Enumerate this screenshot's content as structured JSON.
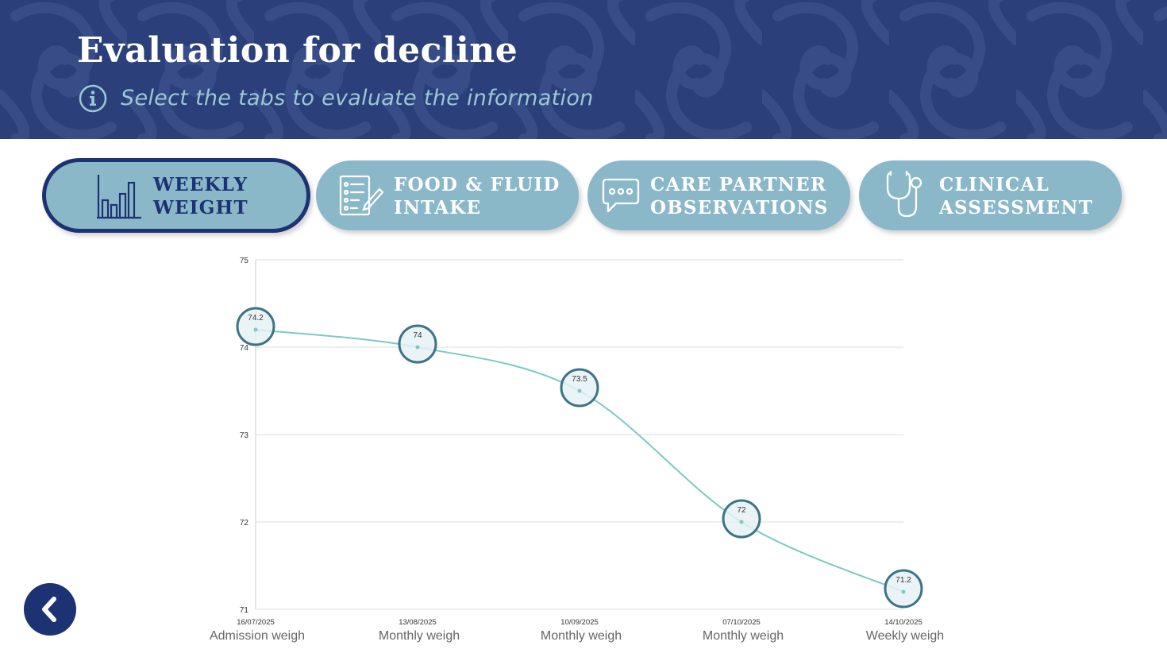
{
  "header": {
    "title": "Evaluation for decline",
    "instruction": "Select the tabs to evaluate the information"
  },
  "tabs": [
    {
      "id": "weekly-weight",
      "line1": "WEEKLY",
      "line2": "WEIGHT",
      "icon": "bar-chart-icon",
      "active": true
    },
    {
      "id": "food-fluid-intake",
      "line1": "FOOD & FLUID",
      "line2": "INTAKE",
      "icon": "checklist-icon",
      "active": false
    },
    {
      "id": "care-partner-observations",
      "line1": "CARE PARTNER",
      "line2": "OBSERVATIONS",
      "icon": "speech-bubble-icon",
      "active": false
    },
    {
      "id": "clinical-assessment",
      "line1": "CLINICAL",
      "line2": "ASSESSMENT",
      "icon": "stethoscope-icon",
      "active": false
    }
  ],
  "colors": {
    "banner": "#2b3f7a",
    "tab_fill": "#8ab8c9",
    "active_border": "#1c3273",
    "line": "#7ccac4",
    "marker_stroke": "#3e7487",
    "marker_fill": "#e6f1f4"
  },
  "chart_data": {
    "type": "line",
    "title": "",
    "xlabel": "",
    "ylabel": "",
    "ylim": [
      71,
      75
    ],
    "yticks": [
      "75",
      "74",
      "73",
      "72",
      "71"
    ],
    "grid": true,
    "x_dates": [
      "16/07/2025",
      "13/08/2025",
      "10/09/2025",
      "07/10/2025",
      "14/10/2025"
    ],
    "categories": [
      "Admission weigh",
      "Monthly weigh",
      "Monthly weigh",
      "Monthly weigh",
      "Weekly weigh"
    ],
    "values": [
      74.2,
      74,
      73.5,
      72,
      71.2
    ],
    "data_labels": [
      "74.2",
      "74",
      "73.5",
      "72",
      "71.2"
    ]
  },
  "nav": {
    "back_icon": "chevron-left-icon"
  }
}
